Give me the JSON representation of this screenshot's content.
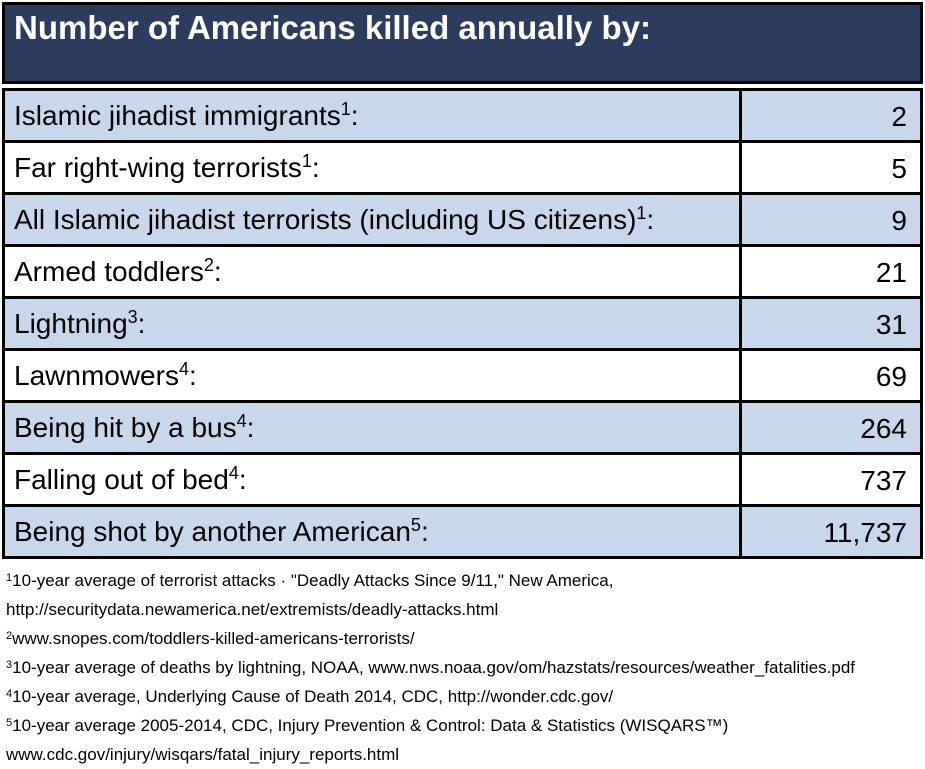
{
  "title": "Number of Americans killed annually by:",
  "colors": {
    "header_bg": "#2b3c5f",
    "row_alt_bg": "#c9d7ed",
    "border": "#000000",
    "title_text": "#ffffff",
    "body_text": "#000000"
  },
  "rows": [
    {
      "label": "Islamic jihadist immigrants",
      "sup": "1",
      "colon": ":",
      "value": "2"
    },
    {
      "label": "Far right-wing terrorists",
      "sup": "1",
      "colon": ":",
      "value": "5"
    },
    {
      "label": "All Islamic jihadist terrorists (including US citizens)",
      "sup": "1",
      "colon": ":",
      "value": "9"
    },
    {
      "label": "Armed toddlers",
      "sup": "2",
      "colon": ":",
      "value": "21"
    },
    {
      "label": "Lightning",
      "sup": "3",
      "colon": ":",
      "value": "31"
    },
    {
      "label": "Lawnmowers",
      "sup": "4",
      "colon": ":",
      "value": "69"
    },
    {
      "label": "Being hit by a bus",
      "sup": "4",
      "colon": ":",
      "value": "264"
    },
    {
      "label": "Falling out of bed",
      "sup": "4",
      "colon": ":",
      "value": "737"
    },
    {
      "label": "Being shot by another American",
      "sup": "5",
      "colon": ":",
      "value": "11,737"
    }
  ],
  "footnotes": [
    {
      "sup": "1",
      "lines": [
        "10-year average of terrorist attacks · \"Deadly Attacks Since 9/11,\" New America,",
        "http://securitydata.newamerica.net/extremists/deadly-attacks.html"
      ]
    },
    {
      "sup": "2",
      "lines": [
        "www.snopes.com/toddlers-killed-americans-terrorists/"
      ]
    },
    {
      "sup": "3",
      "lines": [
        "10-year average of deaths by lightning, NOAA, www.nws.noaa.gov/om/hazstats/resources/weather_fatalities.pdf"
      ]
    },
    {
      "sup": "4",
      "lines": [
        "10-year average, Underlying Cause of Death 2014, CDC, http://wonder.cdc.gov/"
      ]
    },
    {
      "sup": "5",
      "lines": [
        "10-year average 2005-2014, CDC, Injury Prevention & Control: Data & Statistics (WISQARS™)",
        "www.cdc.gov/injury/wisqars/fatal_injury_reports.html"
      ]
    }
  ],
  "chart_data": {
    "type": "table",
    "title": "Number of Americans killed annually by:",
    "categories": [
      "Islamic jihadist immigrants",
      "Far right-wing terrorists",
      "All Islamic jihadist terrorists (including US citizens)",
      "Armed toddlers",
      "Lightning",
      "Lawnmowers",
      "Being hit by a bus",
      "Falling out of bed",
      "Being shot by another American"
    ],
    "values": [
      2,
      5,
      9,
      21,
      31,
      69,
      264,
      737,
      11737
    ]
  }
}
